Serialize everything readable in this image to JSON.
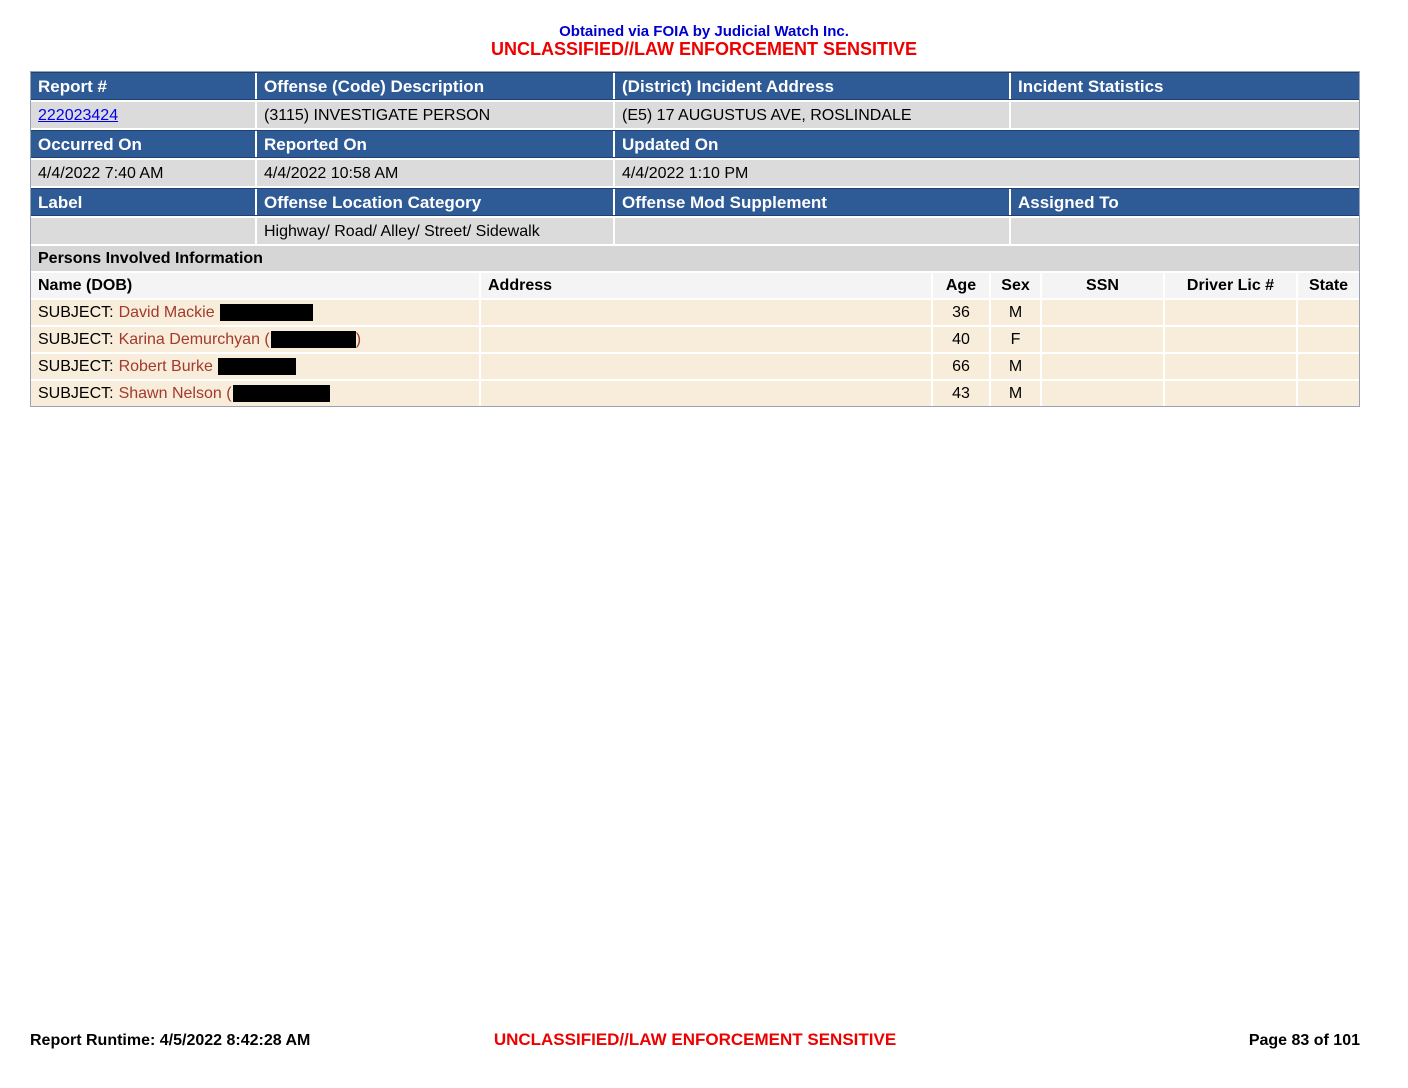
{
  "top": {
    "foia_line": "Obtained via FOIA by Judicial Watch Inc.",
    "classification": "UNCLASSIFIED//LAW ENFORCEMENT SENSITIVE"
  },
  "report": {
    "headers_row1": [
      "Report #",
      "Offense (Code) Description",
      "(District) Incident Address",
      "Incident Statistics"
    ],
    "report_number": "222023424",
    "offense_code_description": "(3115) INVESTIGATE PERSON",
    "district_incident_address": "(E5) 17 AUGUSTUS AVE, ROSLINDALE",
    "incident_statistics": "",
    "headers_row2": [
      "Occurred On",
      "Reported On",
      "Updated On"
    ],
    "occurred_on": "4/4/2022 7:40 AM",
    "reported_on": "4/4/2022 10:58 AM",
    "updated_on": "4/4/2022 1:10 PM",
    "headers_row3": [
      "Label",
      "Offense Location Category",
      "Offense Mod Supplement",
      "Assigned To"
    ],
    "label": "",
    "offense_location_category": "Highway/ Road/ Alley/ Street/ Sidewalk",
    "offense_mod_supplement": "",
    "assigned_to": ""
  },
  "persons": {
    "section_title": "Persons Involved Information",
    "columns": [
      "Name (DOB)",
      "Address",
      "Age",
      "Sex",
      "SSN",
      "Driver Lic #",
      "State"
    ],
    "rows": [
      {
        "role": "SUBJECT:",
        "name": "David Mackie",
        "after_redaction": "",
        "address": "",
        "age": "36",
        "sex": "M",
        "ssn": "",
        "driver_lic": "",
        "state": ""
      },
      {
        "role": "SUBJECT:",
        "name": "Karina Demurchyan (",
        "after_redaction": ")",
        "address": "",
        "age": "40",
        "sex": "F",
        "ssn": "",
        "driver_lic": "",
        "state": ""
      },
      {
        "role": "SUBJECT:",
        "name": "Robert Burke",
        "after_redaction": "",
        "address": "",
        "age": "66",
        "sex": "M",
        "ssn": "",
        "driver_lic": "",
        "state": ""
      },
      {
        "role": "SUBJECT:",
        "name": "Shawn Nelson (",
        "after_redaction": "",
        "address": "",
        "age": "43",
        "sex": "M",
        "ssn": "",
        "driver_lic": "",
        "state": ""
      }
    ]
  },
  "footer": {
    "runtime": "Report Runtime: 4/5/2022 8:42:28 AM",
    "classification": "UNCLASSIFIED//LAW ENFORCEMENT SENSITIVE",
    "page": "Page 83 of 101"
  },
  "colors": {
    "header_blue": "#2e5a96",
    "data_gray": "#dbdbdb",
    "person_cream": "#f8ecda",
    "name_red": "#a33a2c",
    "classification_red": "#ee0000",
    "foia_blue": "#0000cc",
    "link_blue": "#0000ee"
  }
}
